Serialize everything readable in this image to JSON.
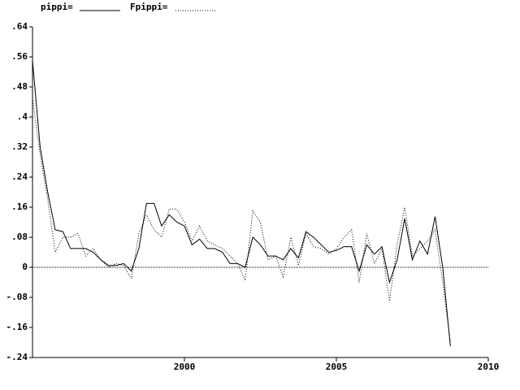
{
  "chart_data": {
    "type": "line",
    "x": [
      1995,
      1995.25,
      1995.5,
      1995.75,
      1996,
      1996.25,
      1996.5,
      1996.75,
      1997,
      1997.25,
      1997.5,
      1997.75,
      1998,
      1998.25,
      1998.5,
      1998.75,
      1999,
      1999.25,
      1999.5,
      1999.75,
      2000,
      2000.25,
      2000.5,
      2000.75,
      2001,
      2001.25,
      2001.5,
      2001.75,
      2002,
      2002.25,
      2002.5,
      2002.75,
      2003,
      2003.25,
      2003.5,
      2003.75,
      2004,
      2004.25,
      2004.5,
      2004.75,
      2005,
      2005.25,
      2005.5,
      2005.75,
      2006,
      2006.25,
      2006.5,
      2006.75,
      2007,
      2007.25,
      2007.5,
      2007.75,
      2008,
      2008.25,
      2008.5,
      2008.75
    ],
    "series": [
      {
        "name": "pippi=",
        "color": "#000000",
        "dash": "none",
        "values": [
          0.55,
          0.32,
          0.2,
          0.1,
          0.095,
          0.05,
          0.05,
          0.05,
          0.04,
          0.02,
          0.005,
          0.005,
          0.01,
          -0.01,
          0.05,
          0.17,
          0.17,
          0.11,
          0.14,
          0.12,
          0.11,
          0.06,
          0.075,
          0.05,
          0.05,
          0.04,
          0.01,
          0.01,
          0.0,
          0.08,
          0.06,
          0.03,
          0.03,
          0.02,
          0.05,
          0.025,
          0.095,
          0.08,
          0.06,
          0.04,
          0.045,
          0.055,
          0.055,
          -0.01,
          0.06,
          0.035,
          0.055,
          -0.04,
          0.02,
          0.13,
          0.02,
          0.07,
          0.035,
          0.135,
          0.0,
          -0.21
        ]
      },
      {
        "name": "Fpippi=",
        "color": "#000000",
        "dash": "1,2",
        "values": [
          0.45,
          0.3,
          0.18,
          0.04,
          0.08,
          0.08,
          0.09,
          0.03,
          0.05,
          0.02,
          0.0,
          0.01,
          0.005,
          -0.03,
          0.09,
          0.14,
          0.1,
          0.08,
          0.155,
          0.155,
          0.12,
          0.07,
          0.11,
          0.07,
          0.06,
          0.05,
          0.03,
          0.01,
          -0.035,
          0.15,
          0.12,
          0.02,
          0.03,
          -0.025,
          0.08,
          0.005,
          0.09,
          0.055,
          0.05,
          0.035,
          0.05,
          0.08,
          0.1,
          -0.04,
          0.09,
          0.01,
          0.05,
          -0.09,
          0.06,
          0.16,
          0.03,
          0.05,
          0.07,
          0.1,
          -0.04,
          -0.2
        ]
      }
    ],
    "xlim": [
      1995,
      2010
    ],
    "xticks": [
      2000,
      2005,
      2010
    ],
    "ylim": [
      -0.24,
      0.64
    ],
    "yticks": [
      {
        "value": -0.24,
        "label": "-.24"
      },
      {
        "value": -0.16,
        "label": "-.16"
      },
      {
        "value": -0.08,
        "label": "-.08"
      },
      0,
      {
        "value": 0.08,
        "label": ".08"
      },
      {
        "value": 0.16,
        "label": ".16"
      },
      {
        "value": 0.24,
        "label": ".24"
      },
      {
        "value": 0.32,
        "label": ".32"
      },
      {
        "value": 0.4,
        "label": ".4"
      },
      {
        "value": 0.48,
        "label": ".48"
      },
      {
        "value": 0.56,
        "label": ".56"
      },
      {
        "value": 0.64,
        "label": ".64"
      }
    ],
    "zero_line": true
  }
}
